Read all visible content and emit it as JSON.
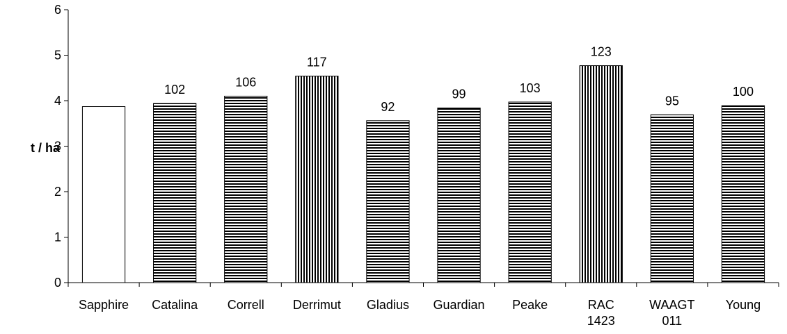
{
  "chart_data": {
    "type": "bar",
    "title": "",
    "xlabel": "",
    "ylabel": "t / ha",
    "ylim": [
      0,
      6
    ],
    "yticks": [
      0,
      1,
      2,
      3,
      4,
      5,
      6
    ],
    "grid": false,
    "categories": [
      [
        "Sapphire"
      ],
      [
        "Catalina"
      ],
      [
        "Correll"
      ],
      [
        "Derrimut"
      ],
      [
        "Gladius"
      ],
      [
        "Guardian"
      ],
      [
        "Peake"
      ],
      [
        "RAC",
        "1423"
      ],
      [
        "WAAGT",
        "011"
      ],
      [
        "Young"
      ]
    ],
    "values": [
      3.87,
      3.94,
      4.1,
      4.54,
      3.56,
      3.84,
      3.97,
      4.77,
      3.69,
      3.89
    ],
    "data_labels": [
      "",
      "102",
      "106",
      "117",
      "92",
      "99",
      "103",
      "123",
      "95",
      "100"
    ],
    "patterns": [
      "none",
      "horizontal-stripes",
      "horizontal-stripes",
      "vertical-stripes",
      "horizontal-stripes",
      "horizontal-stripes",
      "horizontal-stripes",
      "vertical-stripes",
      "horizontal-stripes",
      "horizontal-stripes"
    ],
    "colors": {
      "bar_fill": "#ffffff",
      "stripe": "#000000",
      "axis": "#000000"
    }
  }
}
